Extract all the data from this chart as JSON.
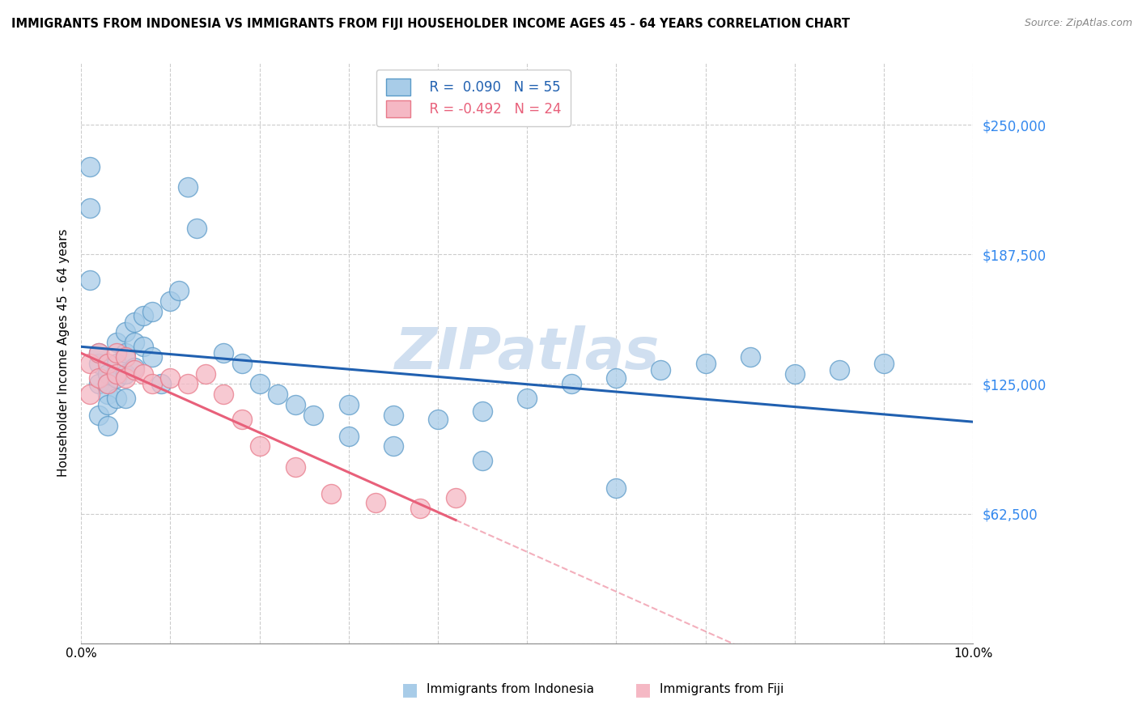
{
  "title": "IMMIGRANTS FROM INDONESIA VS IMMIGRANTS FROM FIJI HOUSEHOLDER INCOME AGES 45 - 64 YEARS CORRELATION CHART",
  "source": "Source: ZipAtlas.com",
  "ylabel": "Householder Income Ages 45 - 64 years",
  "xlim": [
    0.0,
    0.1
  ],
  "ylim": [
    0,
    280000
  ],
  "yticks": [
    0,
    62500,
    125000,
    187500,
    250000
  ],
  "ytick_labels": [
    "",
    "$62,500",
    "$125,000",
    "$187,500",
    "$250,000"
  ],
  "xticks": [
    0.0,
    0.01,
    0.02,
    0.03,
    0.04,
    0.05,
    0.06,
    0.07,
    0.08,
    0.09,
    0.1
  ],
  "xtick_labels": [
    "0.0%",
    "",
    "",
    "",
    "",
    "",
    "",
    "",
    "",
    "",
    "10.0%"
  ],
  "grid_color": "#cccccc",
  "background_color": "#ffffff",
  "indonesia_color": "#a8cce8",
  "fiji_color": "#f5b8c4",
  "indonesia_edge_color": "#5b9ac8",
  "fiji_edge_color": "#e87a8a",
  "line_indonesia_color": "#2060b0",
  "line_fiji_color": "#e8607a",
  "watermark_color": "#d0dff0",
  "watermark_text": "ZIPatlas",
  "legend_R_indonesia": "R =  0.090",
  "legend_N_indonesia": "N = 55",
  "legend_R_fiji": "R = -0.492",
  "legend_N_fiji": "N = 24",
  "legend_color_R": "#2060b0",
  "legend_color_N": "#2060b0",
  "legend_color_R_fiji": "#e8607a",
  "legend_color_N_fiji": "#e8607a",
  "indonesia_x": [
    0.001,
    0.001,
    0.001,
    0.002,
    0.002,
    0.002,
    0.002,
    0.003,
    0.003,
    0.003,
    0.003,
    0.003,
    0.004,
    0.004,
    0.004,
    0.004,
    0.005,
    0.005,
    0.005,
    0.005,
    0.006,
    0.006,
    0.006,
    0.007,
    0.007,
    0.008,
    0.008,
    0.009,
    0.01,
    0.011,
    0.012,
    0.013,
    0.016,
    0.018,
    0.02,
    0.022,
    0.024,
    0.026,
    0.03,
    0.035,
    0.04,
    0.045,
    0.05,
    0.055,
    0.06,
    0.065,
    0.07,
    0.075,
    0.08,
    0.085,
    0.09,
    0.03,
    0.035,
    0.045,
    0.06
  ],
  "indonesia_y": [
    175000,
    210000,
    230000,
    135000,
    140000,
    125000,
    110000,
    130000,
    125000,
    120000,
    115000,
    105000,
    145000,
    135000,
    128000,
    118000,
    150000,
    140000,
    130000,
    118000,
    155000,
    145000,
    133000,
    158000,
    143000,
    160000,
    138000,
    125000,
    165000,
    170000,
    220000,
    200000,
    140000,
    135000,
    125000,
    120000,
    115000,
    110000,
    115000,
    110000,
    108000,
    112000,
    118000,
    125000,
    128000,
    132000,
    135000,
    138000,
    130000,
    132000,
    135000,
    100000,
    95000,
    88000,
    75000
  ],
  "fiji_x": [
    0.001,
    0.001,
    0.002,
    0.002,
    0.003,
    0.003,
    0.004,
    0.004,
    0.005,
    0.005,
    0.006,
    0.007,
    0.008,
    0.01,
    0.012,
    0.014,
    0.016,
    0.018,
    0.02,
    0.024,
    0.028,
    0.033,
    0.038,
    0.042
  ],
  "fiji_y": [
    135000,
    120000,
    140000,
    128000,
    135000,
    125000,
    140000,
    130000,
    138000,
    128000,
    132000,
    130000,
    125000,
    128000,
    125000,
    130000,
    120000,
    108000,
    95000,
    85000,
    72000,
    68000,
    65000,
    70000
  ]
}
